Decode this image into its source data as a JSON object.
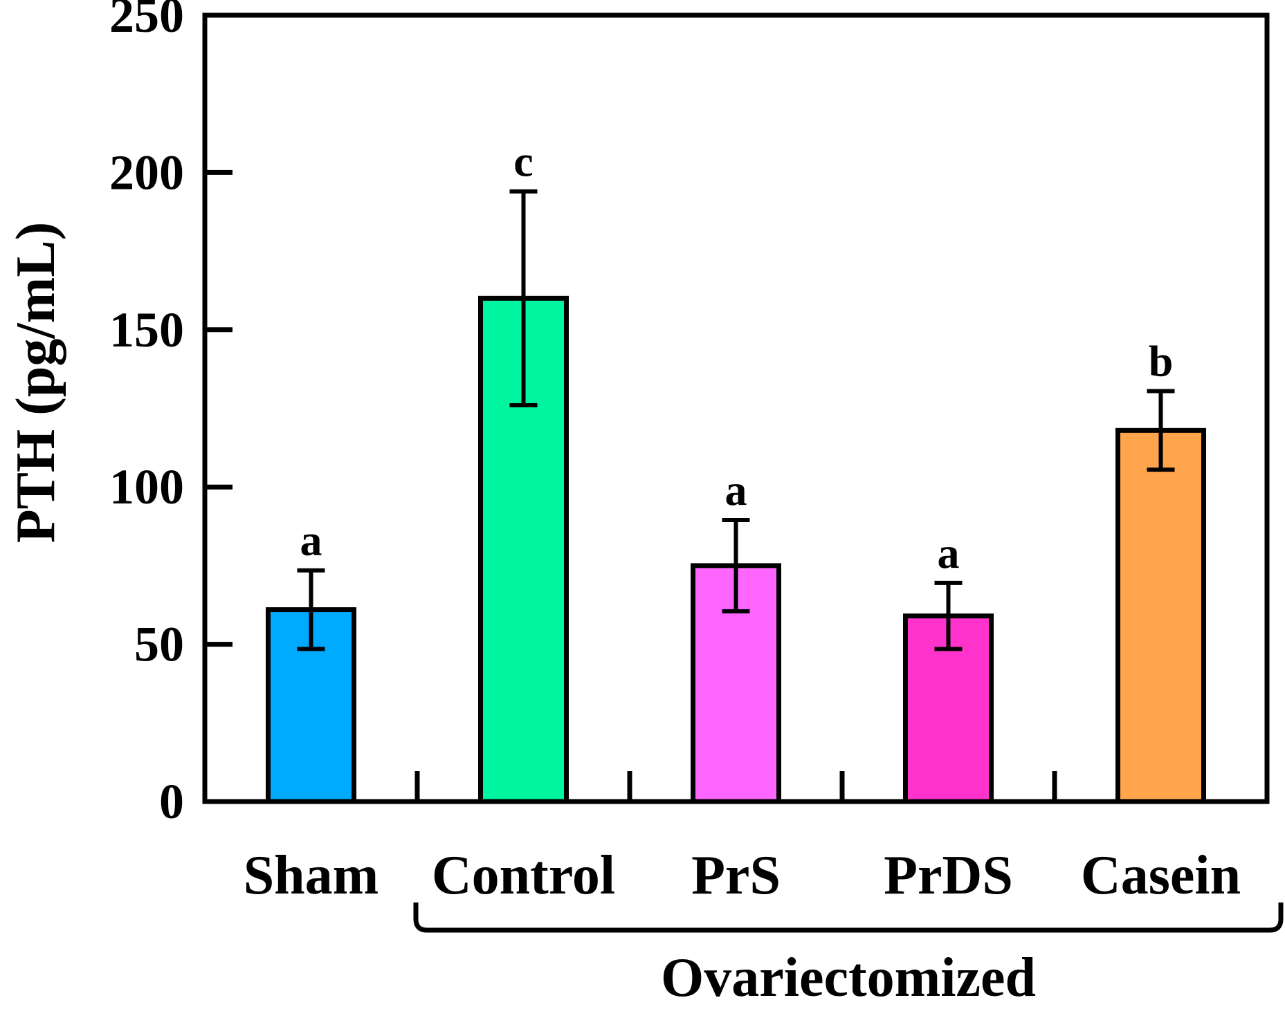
{
  "chart_data": {
    "type": "bar",
    "ylabel": "PTH (pg/mL)",
    "ylim": [
      0,
      250
    ],
    "yticks": [
      0,
      50,
      100,
      150,
      200,
      250
    ],
    "categories": [
      "Sham",
      "Control",
      "PrS",
      "PrDS",
      "Casein"
    ],
    "values": [
      61,
      160,
      75,
      59,
      118
    ],
    "errors": [
      12.5,
      34,
      14.5,
      10.5,
      12.5
    ],
    "significance": [
      "a",
      "c",
      "a",
      "a",
      "b"
    ],
    "colors": [
      "#00aaff",
      "#00f5a0",
      "#ff66ff",
      "#ff33cc",
      "#ffa64d"
    ],
    "group_bracket": {
      "label": "Ovariectomized",
      "from_category": "Control",
      "to_category": "Casein"
    },
    "grid": false,
    "legend": null
  }
}
